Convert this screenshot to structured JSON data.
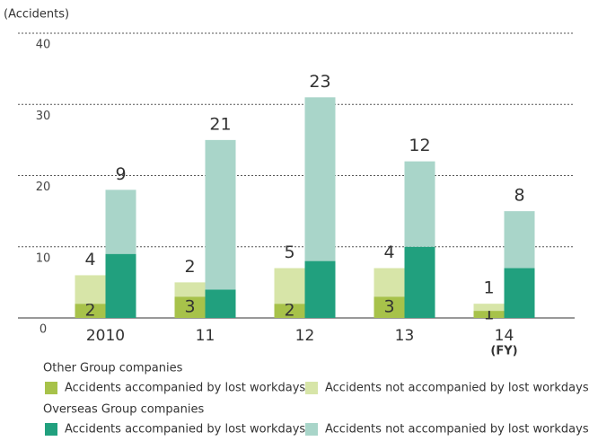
{
  "chart_data": {
    "type": "bar",
    "y_axis_label": "(Accidents)",
    "x_axis_label": "(FY)",
    "categories": [
      "2010",
      "11",
      "12",
      "13",
      "14"
    ],
    "ylim": [
      0,
      40
    ],
    "yticks": [
      0,
      10,
      20,
      30,
      40
    ],
    "grid": true,
    "series": [
      {
        "name": "Accidents accompanied by lost workdays",
        "stack": "Other Group companies",
        "color": "#a7c24a",
        "values": [
          2,
          3,
          2,
          3,
          1
        ]
      },
      {
        "name": "Accidents not accompanied by lost workdays",
        "stack": "Other Group companies",
        "color": "#d7e5a8",
        "values": [
          4,
          2,
          5,
          4,
          1
        ]
      },
      {
        "name": "Accidents accompanied by lost workdays",
        "stack": "Overseas Group companies",
        "color": "#21a07e",
        "values": [
          9,
          4,
          8,
          10,
          7
        ]
      },
      {
        "name": "Accidents not accompanied by lost workdays",
        "stack": "Overseas Group companies",
        "color": "#a9d5c9",
        "values": [
          9,
          21,
          23,
          12,
          8
        ]
      }
    ]
  }
}
